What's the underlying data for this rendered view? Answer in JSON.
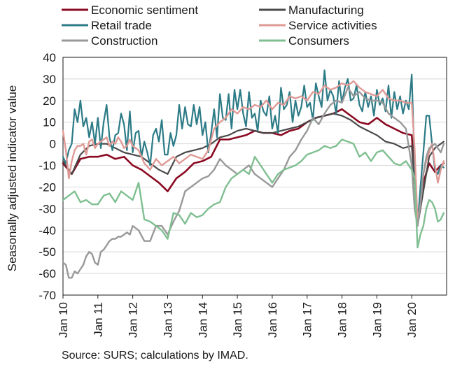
{
  "source": "Source: SURS; calculations by IMAD.",
  "chart_data": {
    "type": "line",
    "ylabel": "Seasonally adjusted indicator value",
    "xlabel": "",
    "ylim": [
      -70,
      40
    ],
    "yticks": [
      40,
      30,
      20,
      10,
      0,
      -10,
      -20,
      -30,
      -40,
      -50,
      -60,
      -70
    ],
    "xticks": [
      {
        "label": "Jan 10",
        "x": 2010.0
      },
      {
        "label": "Jan 11",
        "x": 2011.0
      },
      {
        "label": "Jan 12",
        "x": 2012.0
      },
      {
        "label": "Jan 13",
        "x": 2013.0
      },
      {
        "label": "Jan 14",
        "x": 2014.0
      },
      {
        "label": "Jan 15",
        "x": 2015.0
      },
      {
        "label": "Jan 16",
        "x": 2016.0
      },
      {
        "label": "Jan 17",
        "x": 2017.0
      },
      {
        "label": "Jan 18",
        "x": 2018.0
      },
      {
        "label": "Jan 19",
        "x": 2019.0
      },
      {
        "label": "Jan 20",
        "x": 2020.0
      }
    ],
    "xlim": [
      2010.0,
      2021.0
    ],
    "grid": true,
    "legend_position": "top",
    "series": [
      {
        "name": "Economic sentiment",
        "color": "#8b0a22",
        "width": 2.6,
        "x": [
          2010.0,
          2010.25,
          2010.5,
          2010.75,
          2011.0,
          2011.25,
          2011.5,
          2011.75,
          2012.0,
          2012.25,
          2012.5,
          2012.75,
          2013.0,
          2013.25,
          2013.5,
          2013.75,
          2014.0,
          2014.25,
          2014.5,
          2014.75,
          2015.0,
          2015.25,
          2015.5,
          2015.75,
          2016.0,
          2016.25,
          2016.5,
          2016.75,
          2017.0,
          2017.25,
          2017.5,
          2017.75,
          2018.0,
          2018.25,
          2018.5,
          2018.75,
          2019.0,
          2019.25,
          2019.5,
          2019.75,
          2020.0,
          2020.167,
          2020.333,
          2020.5,
          2020.667,
          2020.833,
          2020.917
        ],
        "y": [
          -9,
          -14,
          -7,
          -6,
          -6,
          -5,
          -7,
          -6,
          -10,
          -12,
          -15,
          -18,
          -22,
          -16,
          -13,
          -9,
          -8,
          -6,
          2,
          2,
          3,
          4,
          6,
          5,
          5,
          4,
          6,
          7,
          10,
          12,
          13,
          14,
          16,
          13,
          10,
          9,
          12,
          9,
          7,
          5,
          4,
          -36,
          -18,
          -9,
          -13,
          -10,
          -9
        ]
      },
      {
        "name": "Manufacturing",
        "color": "#4a4a4a",
        "width": 2.2,
        "x": [
          2010.0,
          2010.25,
          2010.5,
          2010.75,
          2011.0,
          2011.25,
          2011.5,
          2011.75,
          2012.0,
          2012.25,
          2012.5,
          2012.75,
          2013.0,
          2013.25,
          2013.5,
          2013.75,
          2014.0,
          2014.25,
          2014.5,
          2014.75,
          2015.0,
          2015.25,
          2015.5,
          2015.75,
          2016.0,
          2016.25,
          2016.5,
          2016.75,
          2017.0,
          2017.25,
          2017.5,
          2017.75,
          2018.0,
          2018.25,
          2018.5,
          2018.75,
          2019.0,
          2019.25,
          2019.5,
          2019.75,
          2020.0,
          2020.167,
          2020.333,
          2020.5,
          2020.667,
          2020.833,
          2020.917
        ],
        "y": [
          -8,
          -14,
          -5,
          -1,
          0,
          0,
          -2,
          -4,
          -5,
          -6,
          -9,
          -12,
          -14,
          -6,
          -4,
          -3,
          -2,
          0,
          3,
          4,
          6,
          7,
          6,
          5,
          5,
          6,
          7,
          8,
          10,
          12,
          13,
          14,
          13,
          11,
          8,
          6,
          4,
          1,
          0,
          -2,
          -1,
          -38,
          -22,
          -6,
          -2,
          0,
          1
        ]
      },
      {
        "name": "Retail trade",
        "color": "#2c7b86",
        "width": 2.2,
        "x": [
          2010.0,
          2010.083,
          2010.167,
          2010.25,
          2010.333,
          2010.417,
          2010.5,
          2010.583,
          2010.667,
          2010.75,
          2010.833,
          2010.917,
          2011.0,
          2011.083,
          2011.167,
          2011.25,
          2011.333,
          2011.417,
          2011.5,
          2011.583,
          2011.667,
          2011.75,
          2011.833,
          2011.917,
          2012.0,
          2012.083,
          2012.167,
          2012.25,
          2012.333,
          2012.417,
          2012.5,
          2012.583,
          2012.667,
          2012.75,
          2012.833,
          2012.917,
          2013.0,
          2013.083,
          2013.167,
          2013.25,
          2013.333,
          2013.417,
          2013.5,
          2013.583,
          2013.667,
          2013.75,
          2013.833,
          2013.917,
          2014.0,
          2014.083,
          2014.167,
          2014.25,
          2014.333,
          2014.417,
          2014.5,
          2014.583,
          2014.667,
          2014.75,
          2014.833,
          2014.917,
          2015.0,
          2015.083,
          2015.167,
          2015.25,
          2015.333,
          2015.417,
          2015.5,
          2015.583,
          2015.667,
          2015.75,
          2015.833,
          2015.917,
          2016.0,
          2016.083,
          2016.167,
          2016.25,
          2016.333,
          2016.417,
          2016.5,
          2016.583,
          2016.667,
          2016.75,
          2016.833,
          2016.917,
          2017.0,
          2017.083,
          2017.167,
          2017.25,
          2017.333,
          2017.417,
          2017.5,
          2017.583,
          2017.667,
          2017.75,
          2017.833,
          2017.917,
          2018.0,
          2018.083,
          2018.167,
          2018.25,
          2018.333,
          2018.417,
          2018.5,
          2018.583,
          2018.667,
          2018.75,
          2018.833,
          2018.917,
          2019.0,
          2019.083,
          2019.167,
          2019.25,
          2019.333,
          2019.417,
          2019.5,
          2019.583,
          2019.667,
          2019.75,
          2019.833,
          2019.917,
          2020.0,
          2020.083,
          2020.167,
          2020.25,
          2020.333,
          2020.417,
          2020.5,
          2020.583,
          2020.667,
          2020.75,
          2020.833,
          2020.917
        ],
        "y": [
          -6,
          -9,
          -3,
          0,
          16,
          10,
          20,
          8,
          12,
          3,
          10,
          0,
          12,
          -2,
          10,
          18,
          3,
          -3,
          4,
          5,
          14,
          9,
          -3,
          15,
          -4,
          5,
          6,
          -6,
          1,
          -4,
          -10,
          4,
          7,
          1,
          11,
          -5,
          -5,
          5,
          -1,
          4,
          18,
          7,
          17,
          9,
          8,
          18,
          9,
          17,
          4,
          10,
          -4,
          5,
          16,
          3,
          23,
          12,
          11,
          23,
          7,
          25,
          16,
          25,
          14,
          8,
          24,
          12,
          14,
          6,
          20,
          15,
          13,
          22,
          7,
          13,
          5,
          26,
          16,
          18,
          24,
          10,
          20,
          13,
          17,
          27,
          17,
          19,
          11,
          28,
          22,
          17,
          34,
          20,
          25,
          22,
          14,
          29,
          19,
          26,
          30,
          20,
          21,
          27,
          18,
          15,
          24,
          17,
          22,
          13,
          25,
          18,
          21,
          15,
          27,
          12,
          24,
          16,
          22,
          14,
          20,
          16,
          32,
          -10,
          -38,
          -20,
          -4,
          13,
          13,
          0,
          -12,
          -14,
          -10,
          -11
        ]
      },
      {
        "name": "Service activities",
        "color": "#e09a96",
        "width": 2.4,
        "x": [
          2010.0,
          2010.083,
          2010.167,
          2010.25,
          2010.333,
          2010.417,
          2010.5,
          2010.583,
          2010.667,
          2010.75,
          2010.833,
          2010.917,
          2011.0,
          2011.083,
          2011.167,
          2011.25,
          2011.333,
          2011.417,
          2011.5,
          2011.583,
          2011.667,
          2011.75,
          2011.833,
          2011.917,
          2012.0,
          2012.167,
          2012.333,
          2012.5,
          2012.667,
          2012.833,
          2013.0,
          2013.167,
          2013.333,
          2013.5,
          2013.667,
          2013.833,
          2014.0,
          2014.167,
          2014.333,
          2014.5,
          2014.667,
          2014.833,
          2015.0,
          2015.167,
          2015.333,
          2015.5,
          2015.667,
          2015.833,
          2016.0,
          2016.167,
          2016.333,
          2016.5,
          2016.667,
          2016.833,
          2017.0,
          2017.167,
          2017.333,
          2017.5,
          2017.667,
          2017.833,
          2018.0,
          2018.167,
          2018.333,
          2018.5,
          2018.667,
          2018.833,
          2019.0,
          2019.167,
          2019.333,
          2019.5,
          2019.667,
          2019.833,
          2020.0,
          2020.083,
          2020.167,
          2020.25,
          2020.333,
          2020.417,
          2020.5,
          2020.583,
          2020.667,
          2020.75,
          2020.833,
          2020.917
        ],
        "y": [
          6,
          -3,
          -16,
          -8,
          -3,
          -1,
          -1,
          0,
          -5,
          1,
          2,
          -2,
          0,
          1,
          2,
          3,
          -1,
          1,
          0,
          3,
          1,
          -2,
          -1,
          2,
          -1,
          -3,
          -9,
          -12,
          -7,
          -10,
          -8,
          -6,
          -9,
          -7,
          -5,
          -6,
          -7,
          -3,
          7,
          10,
          12,
          16,
          14,
          17,
          16,
          18,
          17,
          20,
          16,
          19,
          18,
          22,
          21,
          22,
          20,
          24,
          23,
          27,
          25,
          26,
          28,
          27,
          29,
          26,
          24,
          23,
          22,
          25,
          21,
          20,
          20,
          19,
          19,
          -2,
          -36,
          -28,
          -14,
          -8,
          -4,
          0,
          -10,
          -18,
          -12,
          -8
        ]
      },
      {
        "name": "Construction",
        "color": "#999999",
        "width": 2.4,
        "x": [
          2010.0,
          2010.083,
          2010.167,
          2010.25,
          2010.333,
          2010.417,
          2010.5,
          2010.583,
          2010.667,
          2010.75,
          2010.833,
          2010.917,
          2011.0,
          2011.083,
          2011.167,
          2011.25,
          2011.333,
          2011.417,
          2011.5,
          2011.583,
          2011.667,
          2011.75,
          2011.833,
          2011.917,
          2012.0,
          2012.167,
          2012.333,
          2012.5,
          2012.667,
          2012.833,
          2013.0,
          2013.167,
          2013.333,
          2013.5,
          2013.667,
          2013.833,
          2014.0,
          2014.167,
          2014.333,
          2014.5,
          2014.667,
          2014.833,
          2015.0,
          2015.167,
          2015.333,
          2015.5,
          2015.667,
          2015.833,
          2016.0,
          2016.167,
          2016.333,
          2016.5,
          2016.667,
          2016.833,
          2017.0,
          2017.167,
          2017.333,
          2017.5,
          2017.667,
          2017.833,
          2018.0,
          2018.167,
          2018.333,
          2018.5,
          2018.667,
          2018.833,
          2019.0,
          2019.167,
          2019.333,
          2019.5,
          2019.667,
          2019.833,
          2020.0,
          2020.083,
          2020.167,
          2020.25,
          2020.333,
          2020.417,
          2020.5,
          2020.583,
          2020.667,
          2020.75,
          2020.833,
          2020.917
        ],
        "y": [
          -55,
          -56,
          -62,
          -62,
          -59,
          -60,
          -58,
          -56,
          -52,
          -50,
          -51,
          -55,
          -56,
          -50,
          -49,
          -47,
          -45,
          -44,
          -44,
          -43,
          -43,
          -42,
          -41,
          -42,
          -38,
          -40,
          -45,
          -45,
          -38,
          -38,
          -42,
          -36,
          -31,
          -22,
          -20,
          -18,
          -16,
          -15,
          -12,
          -7,
          -10,
          -12,
          -14,
          -12,
          -10,
          -14,
          -16,
          -18,
          -20,
          -16,
          -12,
          -6,
          -3,
          2,
          6,
          12,
          9,
          14,
          18,
          20,
          19,
          26,
          22,
          24,
          21,
          20,
          20,
          19,
          14,
          12,
          10,
          7,
          -10,
          -30,
          -38,
          -28,
          -14,
          -6,
          -2,
          -1,
          0,
          -2,
          -4,
          0
        ]
      },
      {
        "name": "Consumers",
        "color": "#7fbf91",
        "width": 2.4,
        "x": [
          2010.0,
          2010.167,
          2010.333,
          2010.5,
          2010.667,
          2010.833,
          2011.0,
          2011.167,
          2011.333,
          2011.5,
          2011.667,
          2011.833,
          2012.0,
          2012.167,
          2012.333,
          2012.5,
          2012.667,
          2012.833,
          2013.0,
          2013.167,
          2013.333,
          2013.5,
          2013.667,
          2013.833,
          2014.0,
          2014.167,
          2014.333,
          2014.5,
          2014.667,
          2014.833,
          2015.0,
          2015.167,
          2015.333,
          2015.5,
          2015.667,
          2015.833,
          2016.0,
          2016.167,
          2016.333,
          2016.5,
          2016.667,
          2016.833,
          2017.0,
          2017.167,
          2017.333,
          2017.5,
          2017.667,
          2017.833,
          2018.0,
          2018.167,
          2018.333,
          2018.5,
          2018.667,
          2018.833,
          2019.0,
          2019.167,
          2019.333,
          2019.5,
          2019.667,
          2019.833,
          2020.0,
          2020.083,
          2020.167,
          2020.25,
          2020.333,
          2020.417,
          2020.5,
          2020.583,
          2020.667,
          2020.75,
          2020.833,
          2020.917
        ],
        "y": [
          -26,
          -24,
          -22,
          -27,
          -26,
          -28,
          -28,
          -24,
          -23,
          -27,
          -22,
          -24,
          -26,
          -18,
          -35,
          -36,
          -38,
          -40,
          -44,
          -32,
          -33,
          -37,
          -32,
          -34,
          -33,
          -30,
          -28,
          -27,
          -20,
          -16,
          -14,
          -12,
          -14,
          -6,
          -10,
          -14,
          -18,
          -14,
          -12,
          -11,
          -10,
          -8,
          -5,
          -4,
          -3,
          -1,
          -2,
          -1,
          2,
          1,
          0,
          -6,
          -4,
          -8,
          -4,
          -3,
          -6,
          -9,
          -10,
          -8,
          -12,
          -16,
          -48,
          -42,
          -38,
          -30,
          -26,
          -27,
          -30,
          -36,
          -35,
          -32
        ]
      }
    ]
  }
}
